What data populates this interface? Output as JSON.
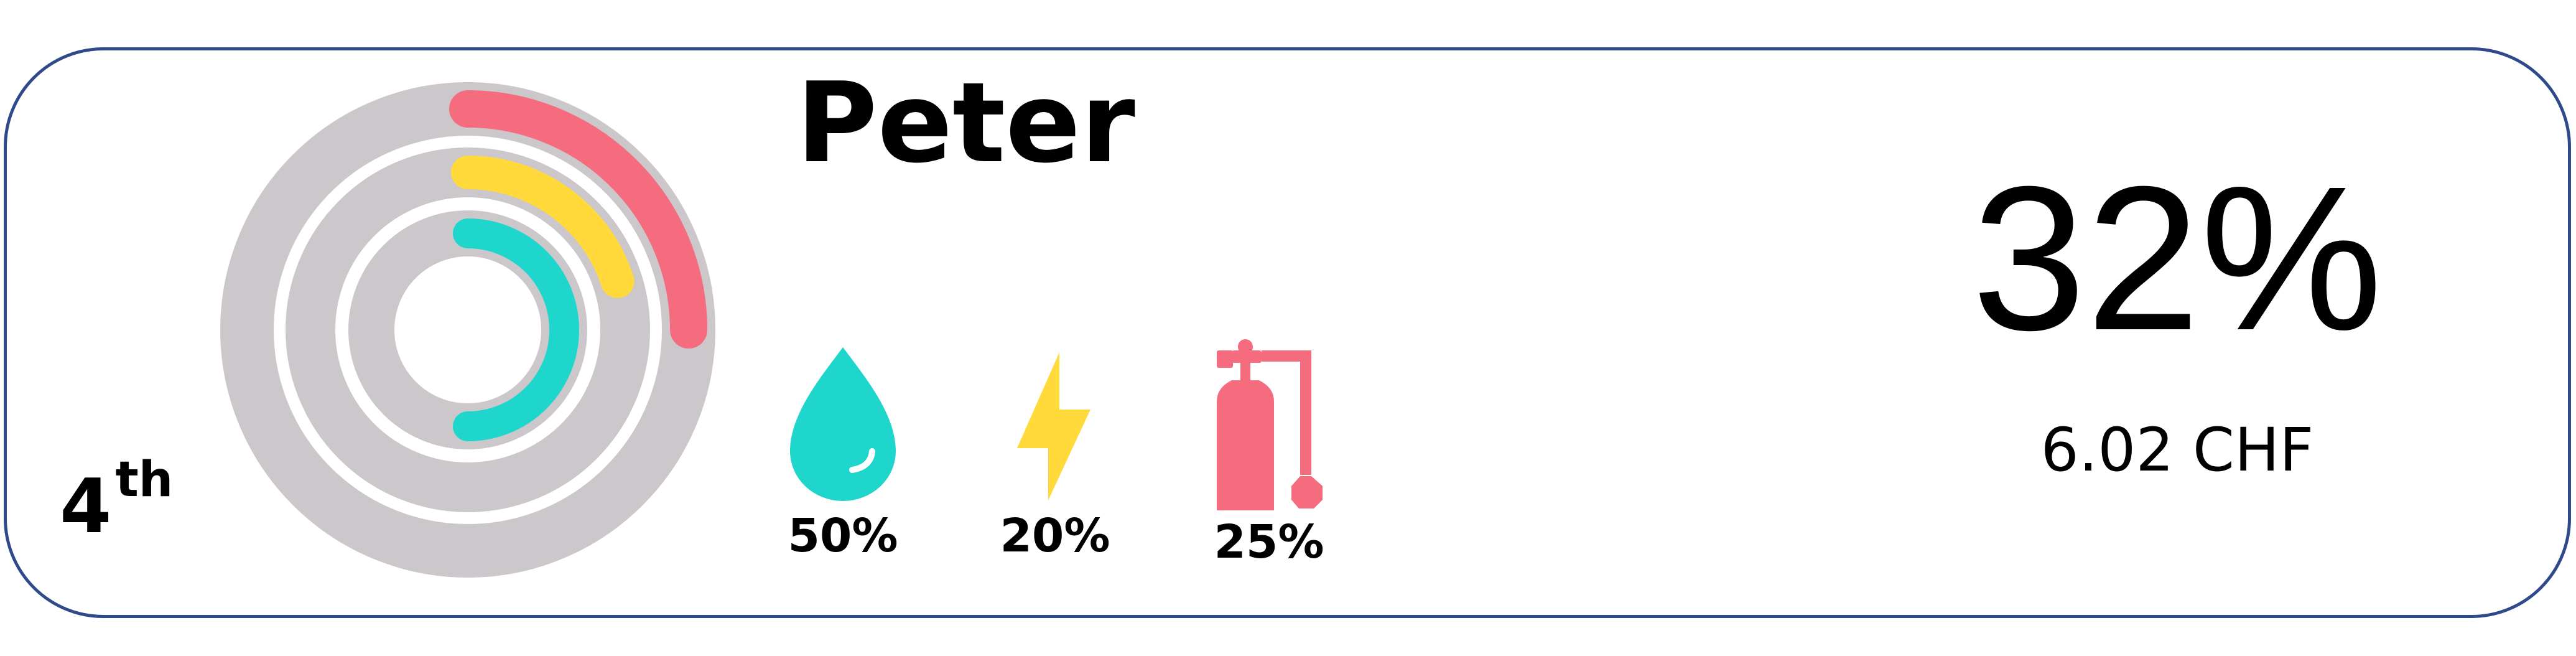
{
  "player": {
    "name": "Peter",
    "rank": "4",
    "rank_suffix": "th",
    "total_percent": "32%",
    "amount": "6.02 CHF"
  },
  "utilities": [
    {
      "name": "water",
      "icon": "water-drop-icon",
      "percent": "50%",
      "fraction": 0.5,
      "color": "#1ed6cc"
    },
    {
      "name": "electricity",
      "icon": "lightning-bolt-icon",
      "percent": "20%",
      "fraction": 0.2,
      "color": "#ffda3a"
    },
    {
      "name": "gas",
      "icon": "gas-cylinder-icon",
      "percent": "25%",
      "fraction": 0.25,
      "color": "#f56c7e"
    }
  ],
  "colors": {
    "card_border": "#2f4a8a",
    "ring_track": "#ccc7cb",
    "water": "#1ed6cc",
    "electricity": "#ffda3a",
    "gas": "#f56c7e"
  }
}
